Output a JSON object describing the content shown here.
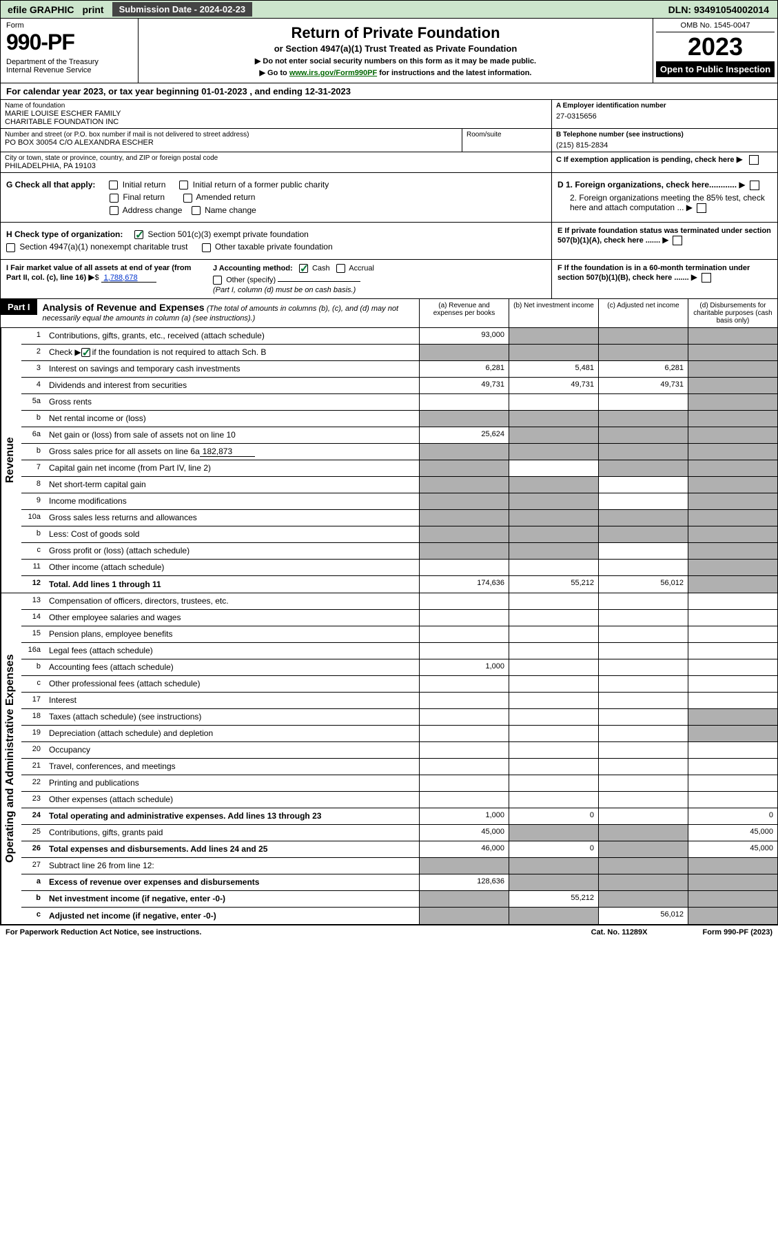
{
  "topbar": {
    "efile": "efile GRAPHIC",
    "print": "print",
    "sub_date_label": "Submission Date - 2024-02-23",
    "dln": "DLN: 93491054002014"
  },
  "header": {
    "form_label": "Form",
    "form_num": "990-PF",
    "dept": "Department of the Treasury\nInternal Revenue Service",
    "title": "Return of Private Foundation",
    "subtitle": "or Section 4947(a)(1) Trust Treated as Private Foundation",
    "instr1": "▶ Do not enter social security numbers on this form as it may be made public.",
    "instr2_pre": "▶ Go to ",
    "instr2_link": "www.irs.gov/Form990PF",
    "instr2_post": " for instructions and the latest information.",
    "omb": "OMB No. 1545-0047",
    "year": "2023",
    "open_insp": "Open to Public Inspection"
  },
  "cal_year": "For calendar year 2023, or tax year beginning 01-01-2023                                , and ending 12-31-2023",
  "id": {
    "name_label": "Name of foundation",
    "name": "MARIE LOUISE ESCHER FAMILY\nCHARITABLE FOUNDATION INC",
    "ein_label": "A Employer identification number",
    "ein": "27-0315656",
    "addr_label": "Number and street (or P.O. box number if mail is not delivered to street address)",
    "addr": "PO BOX 30054 C/O ALEXANDRA ESCHER",
    "room_label": "Room/suite",
    "phone_label": "B Telephone number (see instructions)",
    "phone": "(215) 815-2834",
    "city_label": "City or town, state or province, country, and ZIP or foreign postal code",
    "city": "PHILADELPHIA, PA  19103"
  },
  "checks": {
    "c_label": "C If exemption application is pending, check here",
    "g_label": "G Check all that apply:",
    "g_initial": "Initial return",
    "g_initial_former": "Initial return of a former public charity",
    "g_final": "Final return",
    "g_amended": "Amended return",
    "g_addr": "Address change",
    "g_name": "Name change",
    "d1": "D 1. Foreign organizations, check here............",
    "d2": "2. Foreign organizations meeting the 85% test, check here and attach computation ...",
    "h_label": "H Check type of organization:",
    "h_501c3": "Section 501(c)(3) exempt private foundation",
    "h_4947": "Section 4947(a)(1) nonexempt charitable trust",
    "h_other": "Other taxable private foundation",
    "e_label": "E  If private foundation status was terminated under section 507(b)(1)(A), check here .......",
    "i_label": "I Fair market value of all assets at end of year (from Part II, col. (c), line 16)",
    "i_val": "1,788,678",
    "j_label": "J Accounting method:",
    "j_cash": "Cash",
    "j_accrual": "Accrual",
    "j_other": "Other (specify)",
    "j_note": "(Part I, column (d) must be on cash basis.)",
    "f_label": "F  If the foundation is in a 60-month termination under section 507(b)(1)(B), check here ......."
  },
  "part1": {
    "label": "Part I",
    "title": "Analysis of Revenue and Expenses",
    "note": "(The total of amounts in columns (b), (c), and (d) may not necessarily equal the amounts in column (a) (see instructions).)",
    "col_a": "(a)   Revenue and expenses per books",
    "col_b": "(b)   Net investment income",
    "col_c": "(c)   Adjusted net income",
    "col_d": "(d)   Disbursements for charitable purposes (cash basis only)"
  },
  "revenue_label": "Revenue",
  "expenses_label": "Operating and Administrative Expenses",
  "lines": {
    "l1": {
      "n": "1",
      "d": "Contributions, gifts, grants, etc., received (attach schedule)",
      "a": "93,000"
    },
    "l2": {
      "n": "2",
      "d": "Check ▶",
      "d2": " if the foundation is not required to attach Sch. B"
    },
    "l3": {
      "n": "3",
      "d": "Interest on savings and temporary cash investments",
      "a": "6,281",
      "b": "5,481",
      "c": "6,281"
    },
    "l4": {
      "n": "4",
      "d": "Dividends and interest from securities",
      "a": "49,731",
      "b": "49,731",
      "c": "49,731"
    },
    "l5a": {
      "n": "5a",
      "d": "Gross rents"
    },
    "l5b": {
      "n": "b",
      "d": "Net rental income or (loss)"
    },
    "l6a": {
      "n": "6a",
      "d": "Net gain or (loss) from sale of assets not on line 10",
      "a": "25,624"
    },
    "l6b": {
      "n": "b",
      "d": "Gross sales price for all assets on line 6a",
      "v": "182,873"
    },
    "l7": {
      "n": "7",
      "d": "Capital gain net income (from Part IV, line 2)"
    },
    "l8": {
      "n": "8",
      "d": "Net short-term capital gain"
    },
    "l9": {
      "n": "9",
      "d": "Income modifications"
    },
    "l10a": {
      "n": "10a",
      "d": "Gross sales less returns and allowances"
    },
    "l10b": {
      "n": "b",
      "d": "Less: Cost of goods sold"
    },
    "l10c": {
      "n": "c",
      "d": "Gross profit or (loss) (attach schedule)"
    },
    "l11": {
      "n": "11",
      "d": "Other income (attach schedule)"
    },
    "l12": {
      "n": "12",
      "d": "Total. Add lines 1 through 11",
      "a": "174,636",
      "b": "55,212",
      "c": "56,012"
    },
    "l13": {
      "n": "13",
      "d": "Compensation of officers, directors, trustees, etc."
    },
    "l14": {
      "n": "14",
      "d": "Other employee salaries and wages"
    },
    "l15": {
      "n": "15",
      "d": "Pension plans, employee benefits"
    },
    "l16a": {
      "n": "16a",
      "d": "Legal fees (attach schedule)"
    },
    "l16b": {
      "n": "b",
      "d": "Accounting fees (attach schedule)",
      "a": "1,000"
    },
    "l16c": {
      "n": "c",
      "d": "Other professional fees (attach schedule)"
    },
    "l17": {
      "n": "17",
      "d": "Interest"
    },
    "l18": {
      "n": "18",
      "d": "Taxes (attach schedule) (see instructions)"
    },
    "l19": {
      "n": "19",
      "d": "Depreciation (attach schedule) and depletion"
    },
    "l20": {
      "n": "20",
      "d": "Occupancy"
    },
    "l21": {
      "n": "21",
      "d": "Travel, conferences, and meetings"
    },
    "l22": {
      "n": "22",
      "d": "Printing and publications"
    },
    "l23": {
      "n": "23",
      "d": "Other expenses (attach schedule)"
    },
    "l24": {
      "n": "24",
      "d": "Total operating and administrative expenses. Add lines 13 through 23",
      "a": "1,000",
      "b": "0",
      "d4": "0"
    },
    "l25": {
      "n": "25",
      "d": "Contributions, gifts, grants paid",
      "a": "45,000",
      "d4": "45,000"
    },
    "l26": {
      "n": "26",
      "d": "Total expenses and disbursements. Add lines 24 and 25",
      "a": "46,000",
      "b": "0",
      "d4": "45,000"
    },
    "l27": {
      "n": "27",
      "d": "Subtract line 26 from line 12:"
    },
    "l27a": {
      "n": "a",
      "d": "Excess of revenue over expenses and disbursements",
      "a": "128,636"
    },
    "l27b": {
      "n": "b",
      "d": "Net investment income (if negative, enter -0-)",
      "b": "55,212"
    },
    "l27c": {
      "n": "c",
      "d": "Adjusted net income (if negative, enter -0-)",
      "c": "56,012"
    }
  },
  "footer": {
    "left": "For Paperwork Reduction Act Notice, see instructions.",
    "mid": "Cat. No. 11289X",
    "right": "Form 990-PF (2023)"
  }
}
